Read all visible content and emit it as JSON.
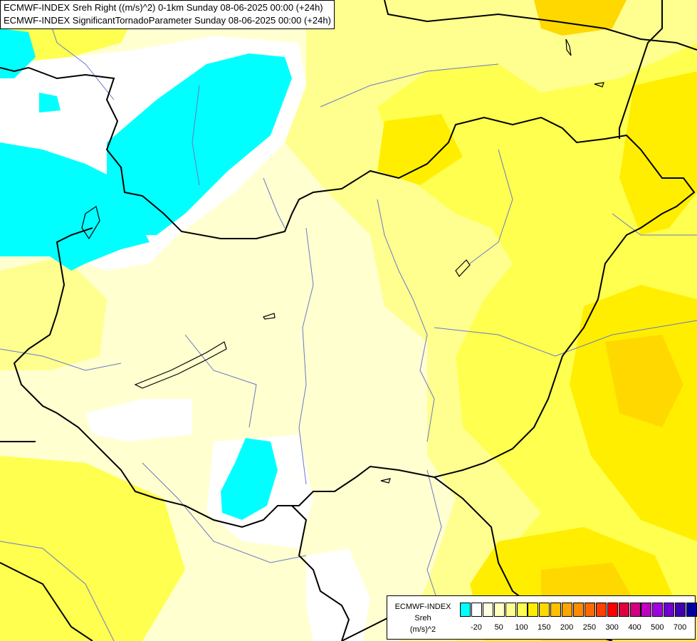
{
  "header": {
    "line1": "ECMWF-INDEX Sreh Right ((m/s)^2) 0-1km Sunday 08-06-2025 00:00 (+24h)",
    "line2": "ECMWF-INDEX SignificantTornadoParameter Sunday 08-06-2025 00:00 (+24h)"
  },
  "legend": {
    "title": "ECMWF-INDEX",
    "variable": "Sreh",
    "unit": "(m/s)^2",
    "colors": [
      "#00ffff",
      "#ffffff",
      "#ffffe0",
      "#ffffc0",
      "#ffff90",
      "#ffff50",
      "#ffee00",
      "#ffd800",
      "#ffc000",
      "#ffa500",
      "#ff8c00",
      "#ff6a00",
      "#ff4000",
      "#ff0000",
      "#e00040",
      "#d00080",
      "#c000c0",
      "#a000e0",
      "#7000d0",
      "#4000b0",
      "#0000a0",
      "#000080"
    ],
    "ticks": [
      "-20",
      "50",
      "100",
      "150",
      "200",
      "250",
      "300",
      "400",
      "500",
      "700"
    ]
  }
}
